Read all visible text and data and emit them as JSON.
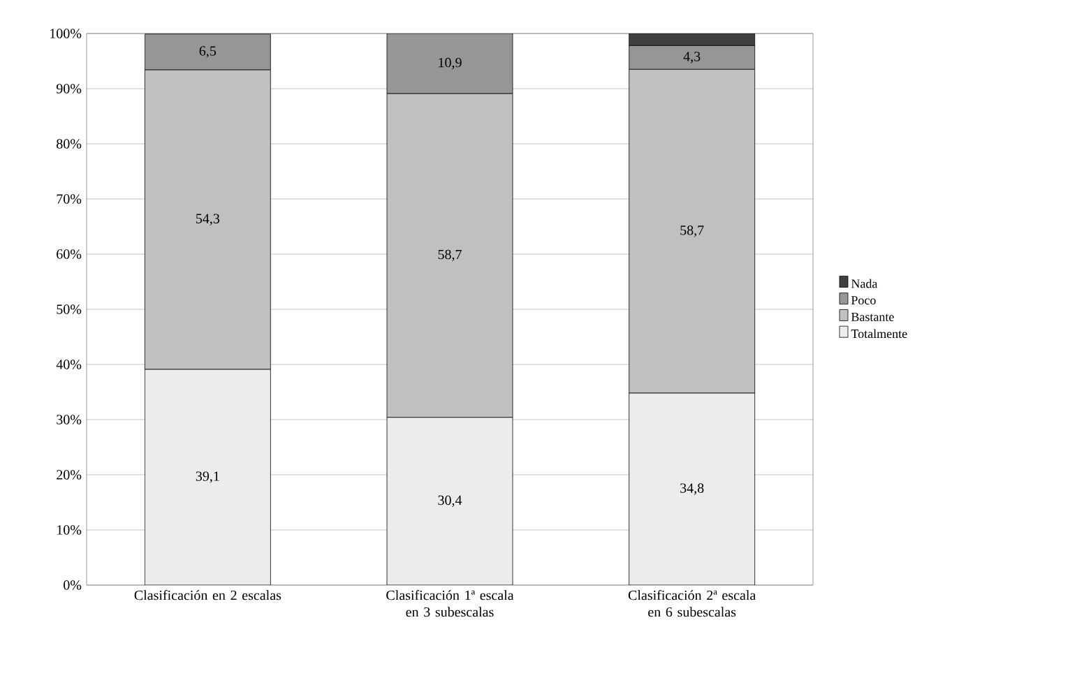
{
  "chart_data": {
    "type": "bar",
    "stacked": true,
    "categories": [
      "Clasificación en 2 escalas",
      "Clasificación 1ª escala en 3 subescalas",
      "Clasificación 2ª escala en 6 subescalas"
    ],
    "series": [
      {
        "name": "Totalmente",
        "color": "#ececec",
        "values": [
          39.1,
          30.4,
          34.8
        ],
        "value_labels": [
          "39,1",
          "30,4",
          "34,8"
        ]
      },
      {
        "name": "Bastante",
        "color": "#c0c0c0",
        "values": [
          54.3,
          58.7,
          58.7
        ],
        "value_labels": [
          "54,3",
          "58,7",
          "58,7"
        ]
      },
      {
        "name": "Poco",
        "color": "#969696",
        "values": [
          6.5,
          10.9,
          4.3
        ],
        "value_labels": [
          "6,5",
          "10,9",
          "4,3"
        ]
      },
      {
        "name": "Nada",
        "color": "#404040",
        "values": [
          0,
          0,
          2.2
        ]
      }
    ],
    "ylim": [
      0,
      100
    ],
    "yticks": [
      {
        "value": 0,
        "label": "0%"
      },
      {
        "value": 10,
        "label": "10%"
      },
      {
        "value": 20,
        "label": "20%"
      },
      {
        "value": 30,
        "label": "30%"
      },
      {
        "value": 40,
        "label": "40%"
      },
      {
        "value": 50,
        "label": "50%"
      },
      {
        "value": 60,
        "label": "60%"
      },
      {
        "value": 70,
        "label": "70%"
      },
      {
        "value": 80,
        "label": "80%"
      },
      {
        "value": 90,
        "label": "90%"
      },
      {
        "value": 100,
        "label": "100%"
      }
    ],
    "grid": "y",
    "legend": "right"
  }
}
